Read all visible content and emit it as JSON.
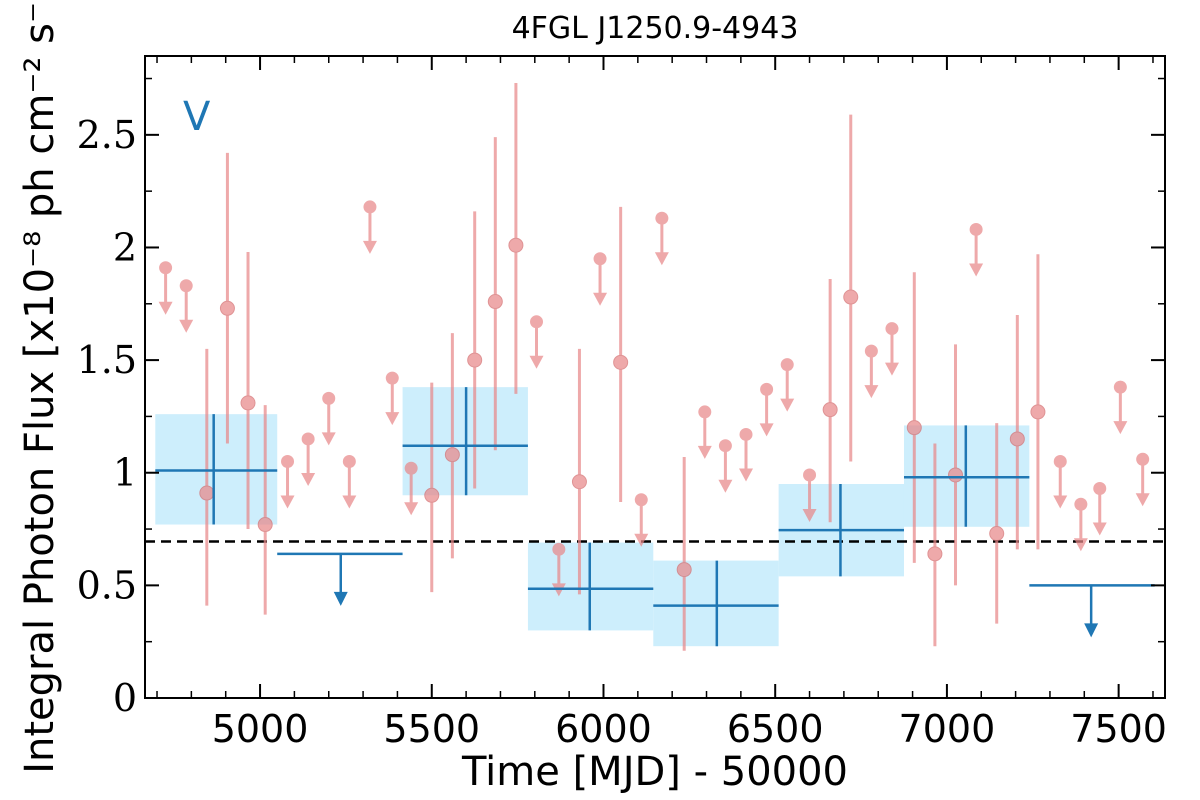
{
  "chart_data": {
    "type": "scatter",
    "title": "4FGL J1250.9-4943",
    "xlabel": "Time [MJD] - 50000",
    "ylabel": "Integral Photon Flux [x10⁻⁸ ph cm⁻² s⁻¹]",
    "xlim": [
      4665,
      7635
    ],
    "ylim": [
      0,
      2.85
    ],
    "xticks": [
      5000,
      5500,
      6000,
      6500,
      7000,
      7500
    ],
    "yticks": [
      0,
      0.5,
      1,
      1.5,
      2,
      2.5
    ],
    "ytick_labels": [
      "0",
      "0.5",
      "1",
      "1.5",
      "2",
      "2.5"
    ],
    "band_label": "V",
    "colors": {
      "fine": "#e8888a",
      "coarse": "#1f77b4",
      "band": "#cdeefc",
      "reference": "#000000"
    },
    "reference_line": {
      "y": 0.695,
      "style": "dashed"
    },
    "series": [
      {
        "binning": "fine",
        "points": [
          {
            "x": 4725,
            "y": 1.91,
            "ul": true
          },
          {
            "x": 4785,
            "y": 1.83,
            "ul": true
          },
          {
            "x": 4845,
            "y": 0.91,
            "lo": 0.41,
            "hi": 1.55
          },
          {
            "x": 4905,
            "y": 1.73,
            "lo": 1.13,
            "hi": 2.42
          },
          {
            "x": 4965,
            "y": 1.31,
            "lo": 0.75,
            "hi": 1.98
          },
          {
            "x": 5015,
            "y": 0.77,
            "lo": 0.37,
            "hi": 1.3
          },
          {
            "x": 5080,
            "y": 1.05,
            "ul": true
          },
          {
            "x": 5140,
            "y": 1.15,
            "ul": true
          },
          {
            "x": 5200,
            "y": 1.33,
            "ul": true
          },
          {
            "x": 5260,
            "y": 1.05,
            "ul": true
          },
          {
            "x": 5320,
            "y": 2.18,
            "ul": true
          },
          {
            "x": 5385,
            "y": 1.42,
            "ul": true
          },
          {
            "x": 5440,
            "y": 1.02,
            "ul": true
          },
          {
            "x": 5500,
            "y": 0.9,
            "lo": 0.47,
            "hi": 1.4
          },
          {
            "x": 5560,
            "y": 1.08,
            "lo": 0.62,
            "hi": 1.62
          },
          {
            "x": 5625,
            "y": 1.5,
            "lo": 0.93,
            "hi": 2.16
          },
          {
            "x": 5685,
            "y": 1.76,
            "lo": 1.1,
            "hi": 2.49
          },
          {
            "x": 5745,
            "y": 2.01,
            "lo": 1.35,
            "hi": 2.73
          },
          {
            "x": 5805,
            "y": 1.67,
            "ul": true
          },
          {
            "x": 5870,
            "y": 0.66,
            "ul": true
          },
          {
            "x": 5930,
            "y": 0.96,
            "lo": 0.46,
            "hi": 1.55
          },
          {
            "x": 5990,
            "y": 1.95,
            "ul": true
          },
          {
            "x": 6050,
            "y": 1.49,
            "lo": 0.87,
            "hi": 2.18
          },
          {
            "x": 6110,
            "y": 0.88,
            "ul": true
          },
          {
            "x": 6170,
            "y": 2.13,
            "ul": true
          },
          {
            "x": 6235,
            "y": 0.57,
            "lo": 0.21,
            "hi": 1.07
          },
          {
            "x": 6295,
            "y": 1.27,
            "ul": true
          },
          {
            "x": 6355,
            "y": 1.12,
            "ul": true
          },
          {
            "x": 6415,
            "y": 1.17,
            "ul": true
          },
          {
            "x": 6475,
            "y": 1.37,
            "ul": true
          },
          {
            "x": 6535,
            "y": 1.48,
            "ul": true
          },
          {
            "x": 6600,
            "y": 0.99,
            "ul": true
          },
          {
            "x": 6660,
            "y": 1.28,
            "lo": 0.78,
            "hi": 1.86
          },
          {
            "x": 6720,
            "y": 1.78,
            "lo": 1.05,
            "hi": 2.59
          },
          {
            "x": 6780,
            "y": 1.54,
            "ul": true
          },
          {
            "x": 6840,
            "y": 1.64,
            "ul": true
          },
          {
            "x": 6905,
            "y": 1.2,
            "lo": 0.6,
            "hi": 1.89
          },
          {
            "x": 6965,
            "y": 0.64,
            "lo": 0.23,
            "hi": 1.13
          },
          {
            "x": 7025,
            "y": 0.99,
            "lo": 0.5,
            "hi": 1.57
          },
          {
            "x": 7085,
            "y": 2.08,
            "ul": true
          },
          {
            "x": 7145,
            "y": 0.73,
            "lo": 0.33,
            "hi": 1.22
          },
          {
            "x": 7205,
            "y": 1.15,
            "lo": 0.66,
            "hi": 1.7
          },
          {
            "x": 7265,
            "y": 1.27,
            "lo": 0.66,
            "hi": 1.97
          },
          {
            "x": 7330,
            "y": 1.05,
            "ul": true
          },
          {
            "x": 7390,
            "y": 0.86,
            "ul": true
          },
          {
            "x": 7445,
            "y": 0.93,
            "ul": true
          },
          {
            "x": 7505,
            "y": 1.38,
            "ul": true
          },
          {
            "x": 7570,
            "y": 1.06,
            "ul": true
          }
        ]
      },
      {
        "binning": "coarse",
        "points": [
          {
            "x": 4865,
            "xlo": 4695,
            "xhi": 5050,
            "y": 1.01,
            "lo": 0.77,
            "hi": 1.26
          },
          {
            "x": 5235,
            "xlo": 5050,
            "xhi": 5415,
            "y": 0.64,
            "ul": true
          },
          {
            "x": 5600,
            "xlo": 5415,
            "xhi": 5780,
            "y": 1.12,
            "lo": 0.9,
            "hi": 1.38
          },
          {
            "x": 5960,
            "xlo": 5780,
            "xhi": 6145,
            "y": 0.485,
            "lo": 0.3,
            "hi": 0.69
          },
          {
            "x": 6330,
            "xlo": 6145,
            "xhi": 6510,
            "y": 0.41,
            "lo": 0.23,
            "hi": 0.61
          },
          {
            "x": 6690,
            "xlo": 6510,
            "xhi": 6875,
            "y": 0.745,
            "lo": 0.54,
            "hi": 0.95
          },
          {
            "x": 7055,
            "xlo": 6875,
            "xhi": 7240,
            "y": 0.98,
            "lo": 0.76,
            "hi": 1.21
          },
          {
            "x": 7420,
            "xlo": 7240,
            "xhi": 7605,
            "y": 0.5,
            "ul": true
          }
        ]
      }
    ]
  }
}
